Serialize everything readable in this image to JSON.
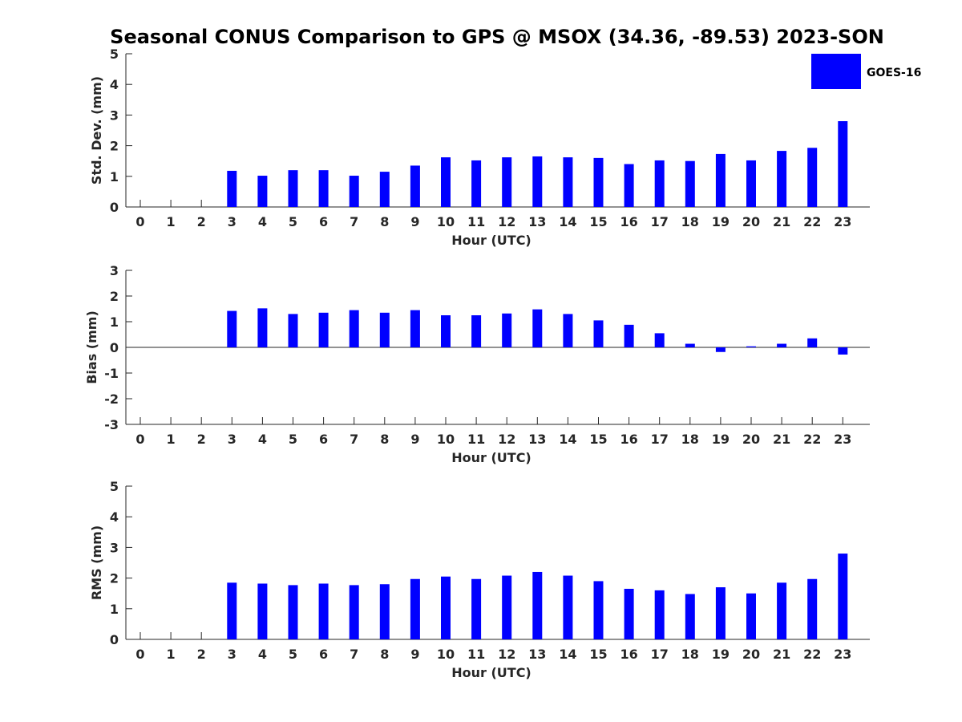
{
  "figure_title": "Seasonal CONUS Comparison to GPS @ MSOX (34.36, -89.53) 2023-SON",
  "legend": {
    "label": "GOES-16",
    "color": "#0000ff"
  },
  "bar_color": "#0000ff",
  "chart_data": [
    {
      "type": "bar",
      "xlabel": "Hour (UTC)",
      "ylabel": "Std. Dev. (mm)",
      "ylim": [
        0,
        5
      ],
      "yticks": [
        0,
        1,
        2,
        3,
        4,
        5
      ],
      "categories": [
        "0",
        "1",
        "2",
        "3",
        "4",
        "5",
        "6",
        "7",
        "8",
        "9",
        "10",
        "11",
        "12",
        "13",
        "14",
        "15",
        "16",
        "17",
        "18",
        "19",
        "20",
        "21",
        "22",
        "23"
      ],
      "series": [
        {
          "name": "GOES-16",
          "values": [
            null,
            null,
            null,
            1.18,
            1.02,
            1.2,
            1.2,
            1.02,
            1.15,
            1.35,
            1.62,
            1.52,
            1.62,
            1.65,
            1.62,
            1.6,
            1.4,
            1.52,
            1.5,
            1.73,
            1.52,
            1.83,
            1.93,
            2.8
          ]
        }
      ],
      "grid": false,
      "legend_position": "top-right"
    },
    {
      "type": "bar",
      "xlabel": "Hour (UTC)",
      "ylabel": "Bias (mm)",
      "ylim": [
        -3,
        3
      ],
      "yticks": [
        -3,
        -2,
        -1,
        0,
        1,
        2,
        3
      ],
      "categories": [
        "0",
        "1",
        "2",
        "3",
        "4",
        "5",
        "6",
        "7",
        "8",
        "9",
        "10",
        "11",
        "12",
        "13",
        "14",
        "15",
        "16",
        "17",
        "18",
        "19",
        "20",
        "21",
        "22",
        "23"
      ],
      "series": [
        {
          "name": "GOES-16",
          "values": [
            null,
            null,
            null,
            1.42,
            1.52,
            1.3,
            1.35,
            1.45,
            1.35,
            1.45,
            1.25,
            1.25,
            1.32,
            1.48,
            1.3,
            1.05,
            0.88,
            0.55,
            0.14,
            -0.18,
            0.04,
            0.14,
            0.35,
            -0.28
          ]
        }
      ],
      "grid": false
    },
    {
      "type": "bar",
      "xlabel": "Hour (UTC)",
      "ylabel": "RMS (mm)",
      "ylim": [
        0,
        5
      ],
      "yticks": [
        0,
        1,
        2,
        3,
        4,
        5
      ],
      "categories": [
        "0",
        "1",
        "2",
        "3",
        "4",
        "5",
        "6",
        "7",
        "8",
        "9",
        "10",
        "11",
        "12",
        "13",
        "14",
        "15",
        "16",
        "17",
        "18",
        "19",
        "20",
        "21",
        "22",
        "23"
      ],
      "series": [
        {
          "name": "GOES-16",
          "values": [
            null,
            null,
            null,
            1.85,
            1.82,
            1.77,
            1.82,
            1.77,
            1.8,
            1.97,
            2.05,
            1.97,
            2.08,
            2.2,
            2.08,
            1.9,
            1.65,
            1.6,
            1.48,
            1.7,
            1.5,
            1.85,
            1.97,
            2.8
          ]
        }
      ],
      "grid": false
    }
  ]
}
